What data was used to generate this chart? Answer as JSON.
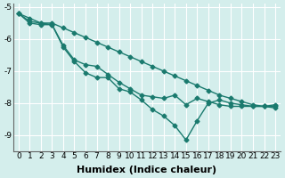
{
  "xlabel": "Humidex (Indice chaleur)",
  "background_color": "#d4eeec",
  "grid_color": "#ffffff",
  "line_color": "#1a7a6e",
  "x": [
    0,
    1,
    2,
    3,
    4,
    5,
    6,
    7,
    8,
    9,
    10,
    11,
    12,
    13,
    14,
    15,
    16,
    17,
    18,
    19,
    20,
    21,
    22,
    23
  ],
  "line1": [
    -5.2,
    -5.35,
    -5.5,
    -5.5,
    -5.65,
    -5.8,
    -5.95,
    -6.1,
    -6.25,
    -6.4,
    -6.55,
    -6.7,
    -6.85,
    -7.0,
    -7.15,
    -7.3,
    -7.45,
    -7.6,
    -7.75,
    -7.85,
    -7.95,
    -8.05,
    -8.1,
    -8.15
  ],
  "line2": [
    -5.2,
    -5.45,
    -5.5,
    -5.55,
    -6.2,
    -6.65,
    -6.8,
    -6.85,
    -7.1,
    -7.35,
    -7.55,
    -7.75,
    -7.8,
    -7.85,
    -7.75,
    -8.05,
    -7.85,
    -7.95,
    -8.05,
    -8.1,
    -8.1,
    -8.1,
    -8.1,
    -8.05
  ],
  "line3": [
    -5.2,
    -5.5,
    -5.55,
    -5.55,
    -6.25,
    -6.7,
    -7.05,
    -7.2,
    -7.2,
    -7.55,
    -7.65,
    -7.9,
    -8.2,
    -8.4,
    -8.7,
    -9.15,
    -8.55,
    -8.0,
    -7.9,
    -8.0,
    -8.05,
    -8.1,
    -8.1,
    -8.1
  ],
  "ylim": [
    -9.5,
    -4.9
  ],
  "xlim": [
    -0.5,
    23.5
  ],
  "yticks": [
    -9,
    -8,
    -7,
    -6,
    -5
  ],
  "xticks": [
    0,
    1,
    2,
    3,
    4,
    5,
    6,
    7,
    8,
    9,
    10,
    11,
    12,
    13,
    14,
    15,
    16,
    17,
    18,
    19,
    20,
    21,
    22,
    23
  ],
  "marker": "D",
  "markersize": 2.5,
  "linewidth": 1.0,
  "xlabel_fontsize": 8,
  "tick_fontsize": 6.5
}
